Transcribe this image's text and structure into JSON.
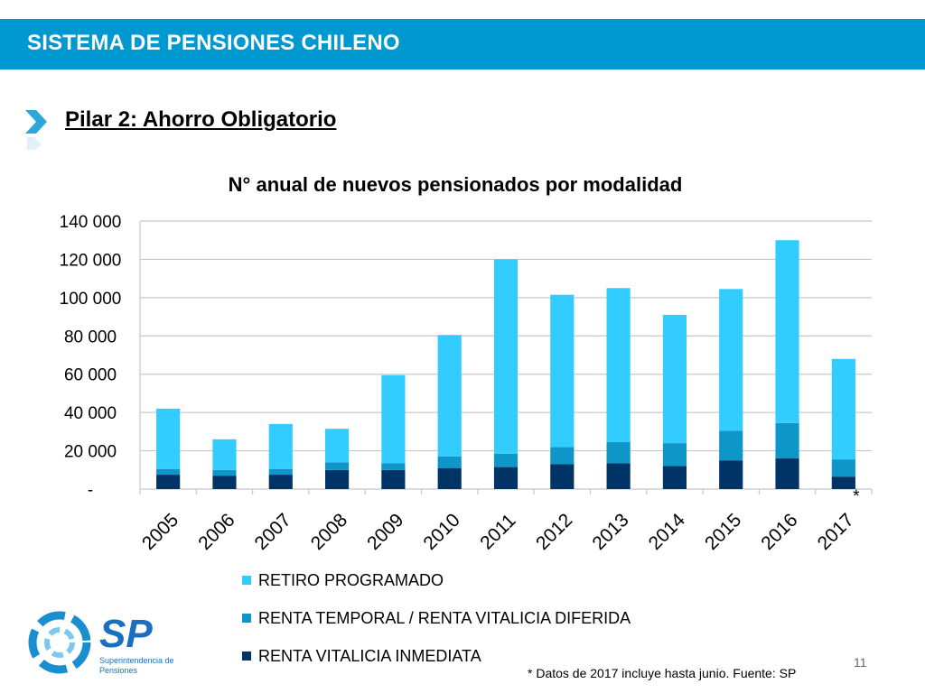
{
  "header": {
    "title": "SISTEMA DE PENSIONES CHILENO"
  },
  "section": {
    "subtitle": "Pilar 2: Ahorro Obligatorio"
  },
  "colors": {
    "header_bg": "#0098d0",
    "retiro_programado": "#33ccff",
    "renta_temporal": "#0e96c8",
    "renta_vitalicia": "#003366",
    "gridline": "#c8c8c8"
  },
  "chart_data": {
    "type": "bar",
    "stacked": true,
    "title": "N° anual de nuevos pensionados por modalidad",
    "categories": [
      "2005",
      "2006",
      "2007",
      "2008",
      "2009",
      "2010",
      "2011",
      "2012",
      "2013",
      "2014",
      "2015",
      "2016",
      "2017"
    ],
    "series": [
      {
        "name": "RENTA VITALICIA INMEDIATA",
        "values": [
          7500,
          7000,
          7500,
          10000,
          10000,
          11000,
          11500,
          13000,
          13500,
          12000,
          15000,
          16000,
          6500
        ]
      },
      {
        "name": "RENTA TEMPORAL / RENTA VITALICIA DIFERIDA",
        "values": [
          3000,
          3000,
          3000,
          4000,
          3500,
          6000,
          7000,
          9000,
          11000,
          12000,
          15500,
          18500,
          9000
        ]
      },
      {
        "name": "RETIRO PROGRAMADO",
        "values": [
          31500,
          16000,
          23500,
          17500,
          46000,
          63500,
          101500,
          79500,
          80500,
          67000,
          74000,
          95500,
          52500
        ]
      }
    ],
    "ylim": [
      0,
      140000
    ],
    "yticks": [
      0,
      20000,
      40000,
      60000,
      80000,
      100000,
      120000,
      140000
    ],
    "ytick_labels": [
      "-",
      "20 000",
      "40 000",
      "60 000",
      "80 000",
      "100 000",
      "120 000",
      "140 000"
    ],
    "annotation": "*",
    "grid": true,
    "legend_position": "bottom"
  },
  "footnote": "* Datos de 2017 incluye hasta junio. Fuente: SP",
  "page_number": "11",
  "logo": {
    "acronym": "SP",
    "line1": "Superintendencia de",
    "line2": "Pensiones"
  }
}
